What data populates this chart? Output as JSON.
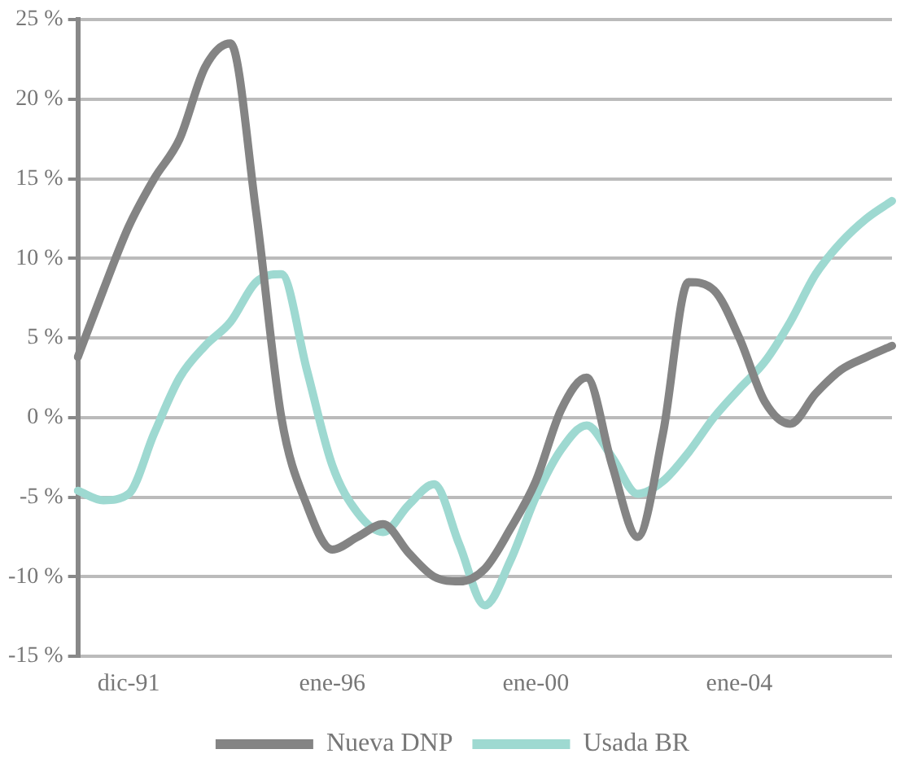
{
  "chart_data": {
    "type": "line",
    "categories": [
      null,
      null,
      "dic-91",
      null,
      null,
      null,
      null,
      null,
      null,
      null,
      "ene-96",
      null,
      null,
      null,
      null,
      null,
      null,
      null,
      "ene-00",
      null,
      null,
      null,
      null,
      null,
      null,
      null,
      "ene-04",
      null,
      null,
      null,
      null,
      null,
      null
    ],
    "series": [
      {
        "name": "Nueva DNP",
        "color": "#848484",
        "values": [
          3.8,
          8,
          12,
          15,
          17.5,
          22,
          23.5,
          13,
          0,
          -5.5,
          -8.3,
          -7.5,
          -6.7,
          -8.5,
          -10,
          -10.3,
          -9.5,
          -7,
          -4,
          0.5,
          2.5,
          -3,
          -7.5,
          -1,
          8.5,
          8,
          5,
          1,
          -0.4,
          1.5,
          3,
          3.8,
          4.5
        ]
      },
      {
        "name": "Usada BR",
        "color": "#9ed9d1",
        "values": [
          -4.6,
          -5.2,
          -4.8,
          -1,
          2.5,
          4.5,
          6,
          8.5,
          9,
          3,
          -3,
          -6,
          -7.2,
          -5.5,
          -4.2,
          -8,
          -11.8,
          -9,
          -5,
          -2,
          -0.5,
          -2.5,
          -4.8,
          -4,
          -2.2,
          0,
          1.8,
          3.5,
          6,
          9,
          11,
          12.5,
          13.6
        ]
      }
    ],
    "ylim": [
      -15,
      25
    ],
    "yticks": [
      {
        "value": -15,
        "label": "-15 %"
      },
      {
        "value": -10,
        "label": "-10 %"
      },
      {
        "value": -5,
        "label": "-5 %"
      },
      {
        "value": 0,
        "label": "0 %"
      },
      {
        "value": 5,
        "label": "5 %"
      },
      {
        "value": 10,
        "label": "10 %"
      },
      {
        "value": 15,
        "label": "15 %"
      },
      {
        "value": 20,
        "label": "20 %"
      },
      {
        "value": 25,
        "label": "25 %"
      }
    ],
    "grid": "y",
    "legend": "bottom",
    "marker": "none",
    "line_style": "solid"
  }
}
